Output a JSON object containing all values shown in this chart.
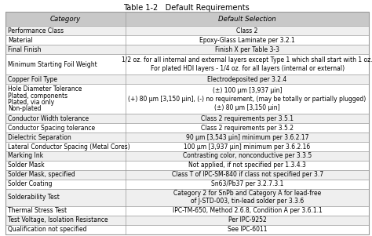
{
  "title": "Table 1-2   Default Requirements",
  "headers": [
    "Category",
    "Default Selection"
  ],
  "rows": [
    [
      "Performance Class",
      "Class 2"
    ],
    [
      "Material",
      "Epoxy-Glass Laminate per 3.2.1"
    ],
    [
      "Final Finish",
      "Finish X per Table 3-3"
    ],
    [
      "Minimum Starting Foil Weight",
      "1/2 oz. for all internal and external layers except Type 1 which shall start with 1 oz.\nFor plated HDI layers - 1/4 oz. for all layers (internal or external)"
    ],
    [
      "Copper Foil Type",
      "Electrodeposited per 3.2.4"
    ],
    [
      "Hole Diameter Tolerance\nPlated, components\nPlated, via only\nNon-plated",
      "(±) 100 μm [3,937 μin]\n(+) 80 μm [3,150 μin], (-) no requirement, (may be totally or partially plugged)\n(±) 80 μm [3,150 μin]"
    ],
    [
      "Conductor Width tolerance",
      "Class 2 requirements per 3.5.1"
    ],
    [
      "Conductor Spacing tolerance",
      "Class 2 requirements per 3.5.2"
    ],
    [
      "Dielectric Separation",
      "90 μm [3,543 μin] minimum per 3.6.2.17"
    ],
    [
      "Lateral Conductor Spacing (Metal Cores)",
      "100 μm [3,937 μin] minimum per 3.6.2.16"
    ],
    [
      "Marking Ink",
      "Contrasting color, nonconductive per 3.3.5"
    ],
    [
      "Solder Mask",
      "Not applied, if not specified per 1.3.4.3"
    ],
    [
      "Solder Mask, specified",
      "Class T of IPC-SM-840 if class not specified per 3.7"
    ],
    [
      "Solder Coating",
      "Sn63/Pb37 per 3.2.7.3.1"
    ],
    [
      "Solderability Test",
      "Category 2 for SnPb and Category A for lead-free\nof J-STD-003, tin-lead solder per 3.3.6"
    ],
    [
      "Thermal Stress Test",
      "IPC-TM-650, Method 2.6.8, Condition A per 3.6.1.1"
    ],
    [
      "Test Voltage, Isolation Resistance",
      "Per IPC-9252"
    ],
    [
      "Qualification not specified",
      "See IPC-6011"
    ]
  ],
  "col_split": 0.33,
  "header_bg": "#c8c8c8",
  "row_bg_light": "#efefef",
  "row_bg_white": "#ffffff",
  "border_color": "#999999",
  "title_fontsize": 7.0,
  "header_fontsize": 6.2,
  "cell_fontsize": 5.5,
  "row_heights_rel": [
    1.15,
    0.75,
    0.75,
    0.75,
    1.65,
    0.75,
    2.4,
    0.75,
    0.75,
    0.75,
    0.75,
    0.75,
    0.75,
    0.75,
    0.75,
    1.4,
    0.75,
    0.75,
    0.75
  ]
}
